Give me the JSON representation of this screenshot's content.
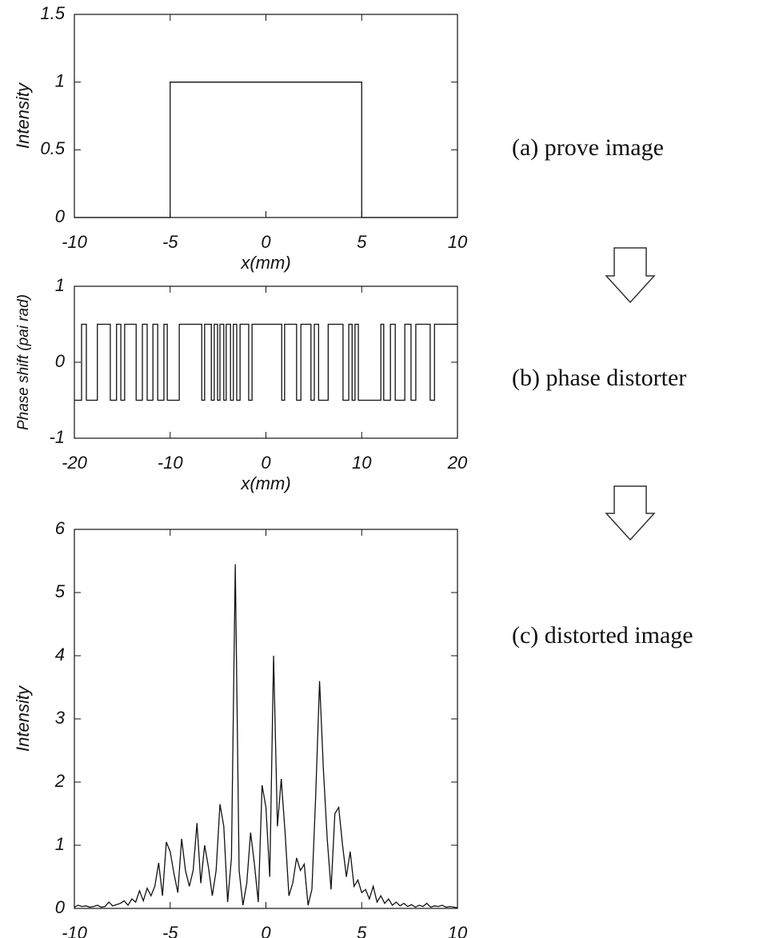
{
  "chart_data": [
    {
      "type": "line",
      "title": "(a) prove image",
      "xlabel": "x(mm)",
      "ylabel": "Intensity",
      "x": [
        -10,
        -5,
        -5,
        5,
        5,
        10
      ],
      "values": [
        0,
        0,
        1,
        1,
        0,
        0
      ],
      "xlim": [
        -10,
        10
      ],
      "xticks": [
        -10,
        -5,
        0,
        5,
        10
      ],
      "ylim": [
        0,
        1.5
      ],
      "yticks": [
        0,
        0.5,
        1,
        1.5
      ],
      "color": "#111111"
    },
    {
      "type": "step",
      "title": "(b) phase distorter",
      "xlabel": "x(mm)",
      "ylabel": "Phase shift (pai rad)",
      "x": [
        -20,
        -19.25,
        -18.75,
        -17.6,
        -16.25,
        -15.6,
        -15.15,
        -14.75,
        -13.55,
        -12.9,
        -12.4,
        -11.8,
        -11.3,
        -10.65,
        -10.3,
        -9.05,
        -6.7,
        -6.4,
        -5.7,
        -5.4,
        -5.05,
        -4.8,
        -4.4,
        -4.15,
        -3.7,
        -3.4,
        -3.05,
        -2.7,
        -1.8,
        -1.45,
        1.65,
        1.95,
        3.2,
        3.65,
        4.7,
        5.05,
        5.5,
        6.5,
        8.05,
        8.65,
        9.0,
        9.3,
        9.65,
        12.0,
        12.3,
        13.0,
        13.5,
        14.5,
        15.15,
        15.65,
        17.15,
        17.6
      ],
      "values": [
        -0.5,
        0.5,
        -0.5,
        0.5,
        -0.5,
        0.5,
        -0.5,
        0.5,
        -0.5,
        0.5,
        -0.5,
        0.5,
        -0.5,
        0.5,
        -0.5,
        0.5,
        -0.5,
        0.5,
        -0.5,
        0.5,
        -0.5,
        0.5,
        -0.5,
        0.5,
        -0.5,
        0.5,
        -0.5,
        0.5,
        -0.5,
        0.5,
        -0.5,
        0.5,
        -0.5,
        0.5,
        -0.5,
        0.5,
        -0.5,
        0.5,
        -0.5,
        0.5,
        -0.5,
        0.5,
        -0.5,
        0.5,
        -0.5,
        0.5,
        -0.5,
        0.5,
        -0.5,
        0.5,
        -0.5,
        0.5
      ],
      "xlim": [
        -20,
        20
      ],
      "xticks": [
        -20,
        -10,
        0,
        10,
        20
      ],
      "ylim": [
        -1,
        1
      ],
      "yticks": [
        -1,
        0,
        1
      ],
      "color": "#111111"
    },
    {
      "type": "line",
      "title": "(c) distorted image",
      "xlabel": "x(mm)",
      "ylabel": "Intensity",
      "x": [
        -10,
        -9.8,
        -9.6,
        -9.4,
        -9.2,
        -9,
        -8.8,
        -8.6,
        -8.4,
        -8.2,
        -8,
        -7.8,
        -7.6,
        -7.4,
        -7.2,
        -7,
        -6.8,
        -6.6,
        -6.4,
        -6.2,
        -6,
        -5.8,
        -5.6,
        -5.4,
        -5.2,
        -5,
        -4.8,
        -4.6,
        -4.4,
        -4.2,
        -4,
        -3.8,
        -3.6,
        -3.4,
        -3.2,
        -3,
        -2.8,
        -2.6,
        -2.4,
        -2.2,
        -2,
        -1.8,
        -1.6,
        -1.4,
        -1.2,
        -1,
        -0.8,
        -0.6,
        -0.4,
        -0.2,
        0,
        0.2,
        0.4,
        0.6,
        0.8,
        1,
        1.2,
        1.4,
        1.6,
        1.8,
        2,
        2.2,
        2.4,
        2.6,
        2.8,
        3,
        3.2,
        3.4,
        3.6,
        3.8,
        4,
        4.2,
        4.4,
        4.6,
        4.8,
        5,
        5.2,
        5.4,
        5.6,
        5.8,
        6,
        6.2,
        6.4,
        6.6,
        6.8,
        7,
        7.2,
        7.4,
        7.6,
        7.8,
        8,
        8.2,
        8.4,
        8.6,
        8.8,
        9,
        9.2,
        9.4,
        9.6,
        9.8,
        10
      ],
      "values": [
        0.02,
        0.05,
        0.03,
        0.04,
        0.02,
        0.03,
        0.05,
        0.02,
        0.03,
        0.1,
        0.04,
        0.06,
        0.08,
        0.12,
        0.05,
        0.15,
        0.1,
        0.28,
        0.12,
        0.32,
        0.2,
        0.35,
        0.72,
        0.2,
        1.05,
        0.9,
        0.55,
        0.25,
        1.1,
        0.6,
        0.35,
        0.6,
        1.35,
        0.4,
        1.0,
        0.65,
        0.2,
        0.6,
        1.65,
        1.3,
        0.1,
        0.8,
        5.45,
        0.6,
        0.05,
        0.4,
        1.2,
        0.7,
        0.1,
        1.95,
        1.6,
        0.5,
        4.0,
        1.3,
        2.05,
        1.2,
        0.2,
        0.4,
        0.8,
        0.6,
        0.7,
        0.05,
        0.3,
        1.8,
        3.6,
        2.2,
        1.1,
        0.3,
        1.5,
        1.6,
        1.0,
        0.5,
        0.9,
        0.35,
        0.45,
        0.25,
        0.3,
        0.15,
        0.35,
        0.1,
        0.2,
        0.08,
        0.15,
        0.05,
        0.1,
        0.04,
        0.08,
        0.03,
        0.06,
        0.02,
        0.05,
        0.03,
        0.08,
        0.02,
        0.04,
        0.03,
        0.05,
        0.02,
        0.03,
        0.02,
        0.01
      ],
      "xlim": [
        -10,
        10
      ],
      "xticks": [
        -10,
        -5,
        0,
        5,
        10
      ],
      "ylim": [
        0,
        6
      ],
      "yticks": [
        0,
        1,
        2,
        3,
        4,
        5,
        6
      ],
      "color": "#111111"
    }
  ]
}
